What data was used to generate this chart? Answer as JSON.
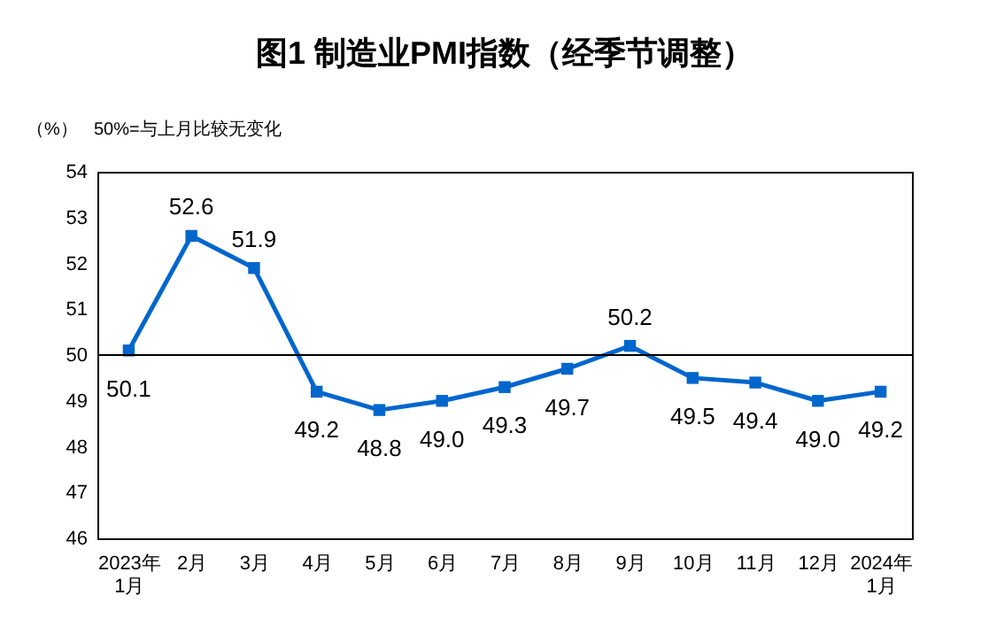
{
  "chart_data": {
    "type": "line",
    "title": "图1 制造业PMI指数（经季节调整）",
    "ylabel": "（%）",
    "annotations": [
      "50%=与上月比较无变化"
    ],
    "categories": [
      "2023年\n1月",
      "2月",
      "3月",
      "4月",
      "5月",
      "6月",
      "7月",
      "8月",
      "9月",
      "10月",
      "11月",
      "12月",
      "2024年\n1月"
    ],
    "series": [
      {
        "color": "#0066cc",
        "values": [
          50.1,
          52.6,
          51.9,
          49.2,
          48.8,
          49.0,
          49.3,
          49.7,
          50.2,
          49.5,
          49.4,
          49.0,
          49.2
        ]
      }
    ],
    "value_labels": [
      "50.1",
      "52.6",
      "51.9",
      "49.2",
      "48.8",
      "49.0",
      "49.3",
      "49.7",
      "50.2",
      "49.5",
      "49.4",
      "49.0",
      "49.2"
    ],
    "ylim": [
      46,
      54
    ],
    "yticks": [
      46,
      47,
      48,
      49,
      50,
      51,
      52,
      53,
      54
    ],
    "ref_lines": [
      {
        "axis": "y",
        "value": 50,
        "color": "#000000"
      }
    ],
    "marker": "square",
    "line_style": "solid",
    "grid": false
  }
}
